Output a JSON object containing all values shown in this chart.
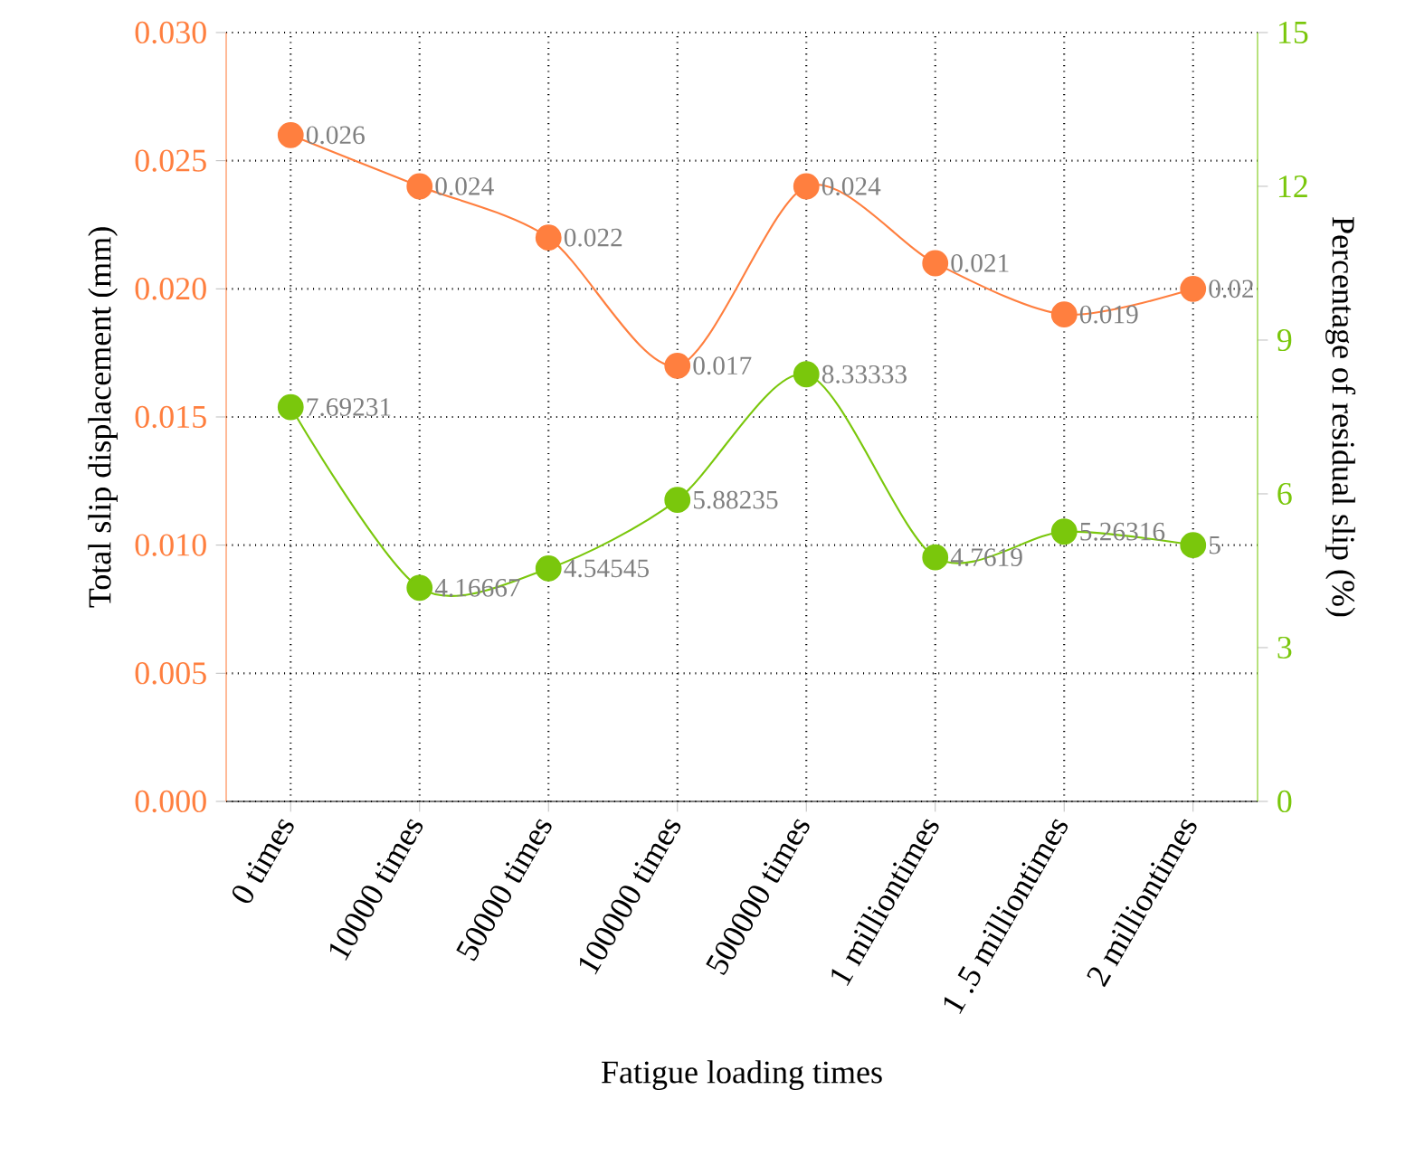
{
  "chart_data": {
    "type": "line",
    "xlabel": "Fatigue loading times",
    "ylabel": "Total slip displacement (mm)",
    "y2label": "Percentage of residual slip (%)",
    "categories": [
      "0 times",
      "10000 times",
      "50000 times",
      "100000 times",
      "500000 times",
      "1 milliontimes",
      "1 .5 milliontimes",
      "2 milliontimes"
    ],
    "series": [
      {
        "color": "#ff7f3f",
        "values": [
          0.026,
          0.024,
          0.022,
          0.017,
          0.024,
          0.021,
          0.019,
          0.02
        ],
        "value_labels": [
          "0.026",
          "0.024",
          "0.022",
          "0.017",
          "0.024",
          "0.021",
          "0.019",
          "0.02"
        ]
      },
      {
        "color": "#7ac70c",
        "axis": "y2",
        "values": [
          7.69231,
          4.16667,
          4.54545,
          5.88235,
          8.33333,
          4.7619,
          5.26316,
          5
        ],
        "value_labels": [
          "7.69231",
          "4.16667",
          "4.54545",
          "5.88235",
          "8.33333",
          "4.7619",
          "5.26316",
          "5"
        ]
      }
    ],
    "ylim": [
      0,
      0.03
    ],
    "yticks": [
      {
        "value": 0,
        "label": "0.000"
      },
      {
        "value": 0.005,
        "label": "0.005"
      },
      {
        "value": 0.01,
        "label": "0.010"
      },
      {
        "value": 0.015,
        "label": "0.015"
      },
      {
        "value": 0.02,
        "label": "0.020"
      },
      {
        "value": 0.025,
        "label": "0.025"
      },
      {
        "value": 0.03,
        "label": "0.030"
      }
    ],
    "y2lim": [
      0,
      15
    ],
    "y2ticks": [
      0,
      3,
      6,
      9,
      12,
      15
    ],
    "grid": true,
    "marker": "circle"
  }
}
